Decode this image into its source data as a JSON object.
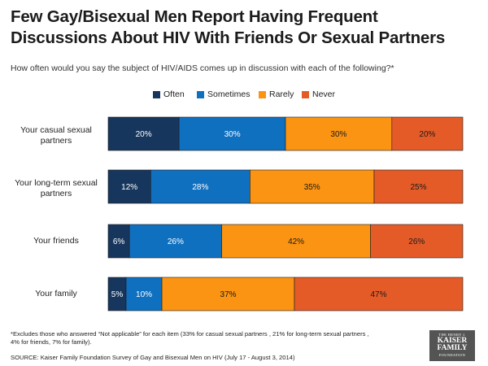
{
  "page": {
    "title": "Few Gay/Bisexual Men Report Having Frequent Discussions About HIV With Friends Or Sexual Partners",
    "subtitle": "How often would you say the subject of HIV/AIDS comes up in discussion with each of the following?*",
    "footnote": "*Excludes those who answered “Not applicable” for each item (33% for casual sexual partners , 21% for long-term sexual partners , 4% for friends, 7% for family).",
    "source": "SOURCE: Kaiser Family Foundation Survey of Gay and Bisexual Men on HIV (July 17 - August 3, 2014)",
    "logo": {
      "line1": "THE HENRY J.",
      "line2": "KAISER",
      "line3": "FAMILY",
      "line4": "FOUNDATION"
    }
  },
  "legend": [
    {
      "label": "Often",
      "color": "#17365d"
    },
    {
      "label": "Sometimes",
      "color": "#1070c0"
    },
    {
      "label": "Rarely",
      "color": "#fb9412"
    },
    {
      "label": "Never",
      "color": "#e55b28"
    }
  ],
  "chart_data": {
    "type": "bar",
    "orientation": "horizontal",
    "stacked": true,
    "title": "Few Gay/Bisexual Men Report Having Frequent Discussions About HIV With Friends Or Sexual Partners",
    "xlabel": "",
    "ylabel": "",
    "xlim": [
      0,
      100
    ],
    "unit": "%",
    "grid": false,
    "legend_position": "top",
    "categories": [
      "Your casual sexual partners",
      "Your long-term sexual partners",
      "Your friends",
      "Your family"
    ],
    "series": [
      {
        "name": "Often",
        "color": "#17365d",
        "values": [
          20,
          12,
          6,
          5
        ]
      },
      {
        "name": "Sometimes",
        "color": "#1070c0",
        "values": [
          30,
          28,
          26,
          10
        ]
      },
      {
        "name": "Rarely",
        "color": "#fb9412",
        "values": [
          30,
          35,
          42,
          37
        ]
      },
      {
        "name": "Never",
        "color": "#e55b28",
        "values": [
          20,
          25,
          26,
          47
        ]
      }
    ],
    "data_labels": [
      [
        "20%",
        "30%",
        "30%",
        "20%"
      ],
      [
        "12%",
        "28%",
        "35%",
        "25%"
      ],
      [
        "6%",
        "26%",
        "42%",
        "26%"
      ],
      [
        "5%",
        "10%",
        "37%",
        "47%"
      ]
    ]
  }
}
